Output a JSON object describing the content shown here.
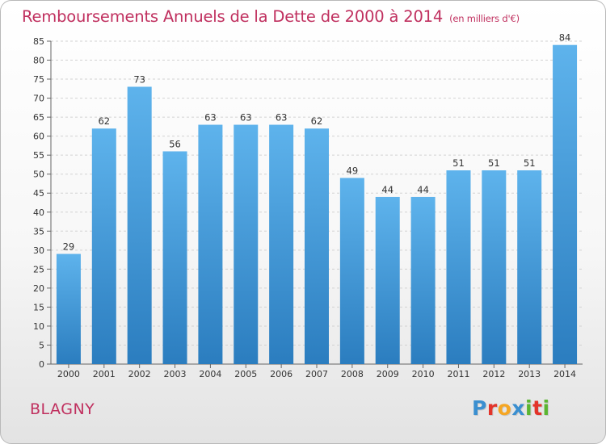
{
  "header": {
    "title": "Remboursements Annuels de la Dette de 2000 à 2014",
    "subtitle": "(en milliers d'€)"
  },
  "footer": {
    "commune": "BLAGNY",
    "logo_letters": [
      "P",
      "r",
      "o",
      "x",
      "i",
      "t",
      "i"
    ],
    "logo_colors": [
      "#3a8fd0",
      "#e3342a",
      "#f5a623",
      "#3a8fd0",
      "#5bb531",
      "#e3342a",
      "#5bb531"
    ]
  },
  "colors": {
    "title": "#c0305f",
    "bar_light": "#5eb3ec",
    "bar_dark": "#2b7dbf"
  },
  "chart_data": {
    "type": "bar",
    "title": "Remboursements Annuels de la Dette de 2000 à 2014",
    "subtitle": "(en milliers d'€)",
    "categories": [
      "2000",
      "2001",
      "2002",
      "2003",
      "2004",
      "2005",
      "2006",
      "2007",
      "2008",
      "2009",
      "2010",
      "2011",
      "2012",
      "2013",
      "2014"
    ],
    "values": [
      29,
      62,
      73,
      56,
      63,
      63,
      63,
      62,
      49,
      44,
      44,
      51,
      51,
      51,
      84
    ],
    "ylim": [
      0,
      85
    ],
    "yticks": [
      0,
      5,
      10,
      15,
      20,
      25,
      30,
      35,
      40,
      45,
      50,
      55,
      60,
      65,
      70,
      75,
      80,
      85
    ],
    "grid": true
  }
}
